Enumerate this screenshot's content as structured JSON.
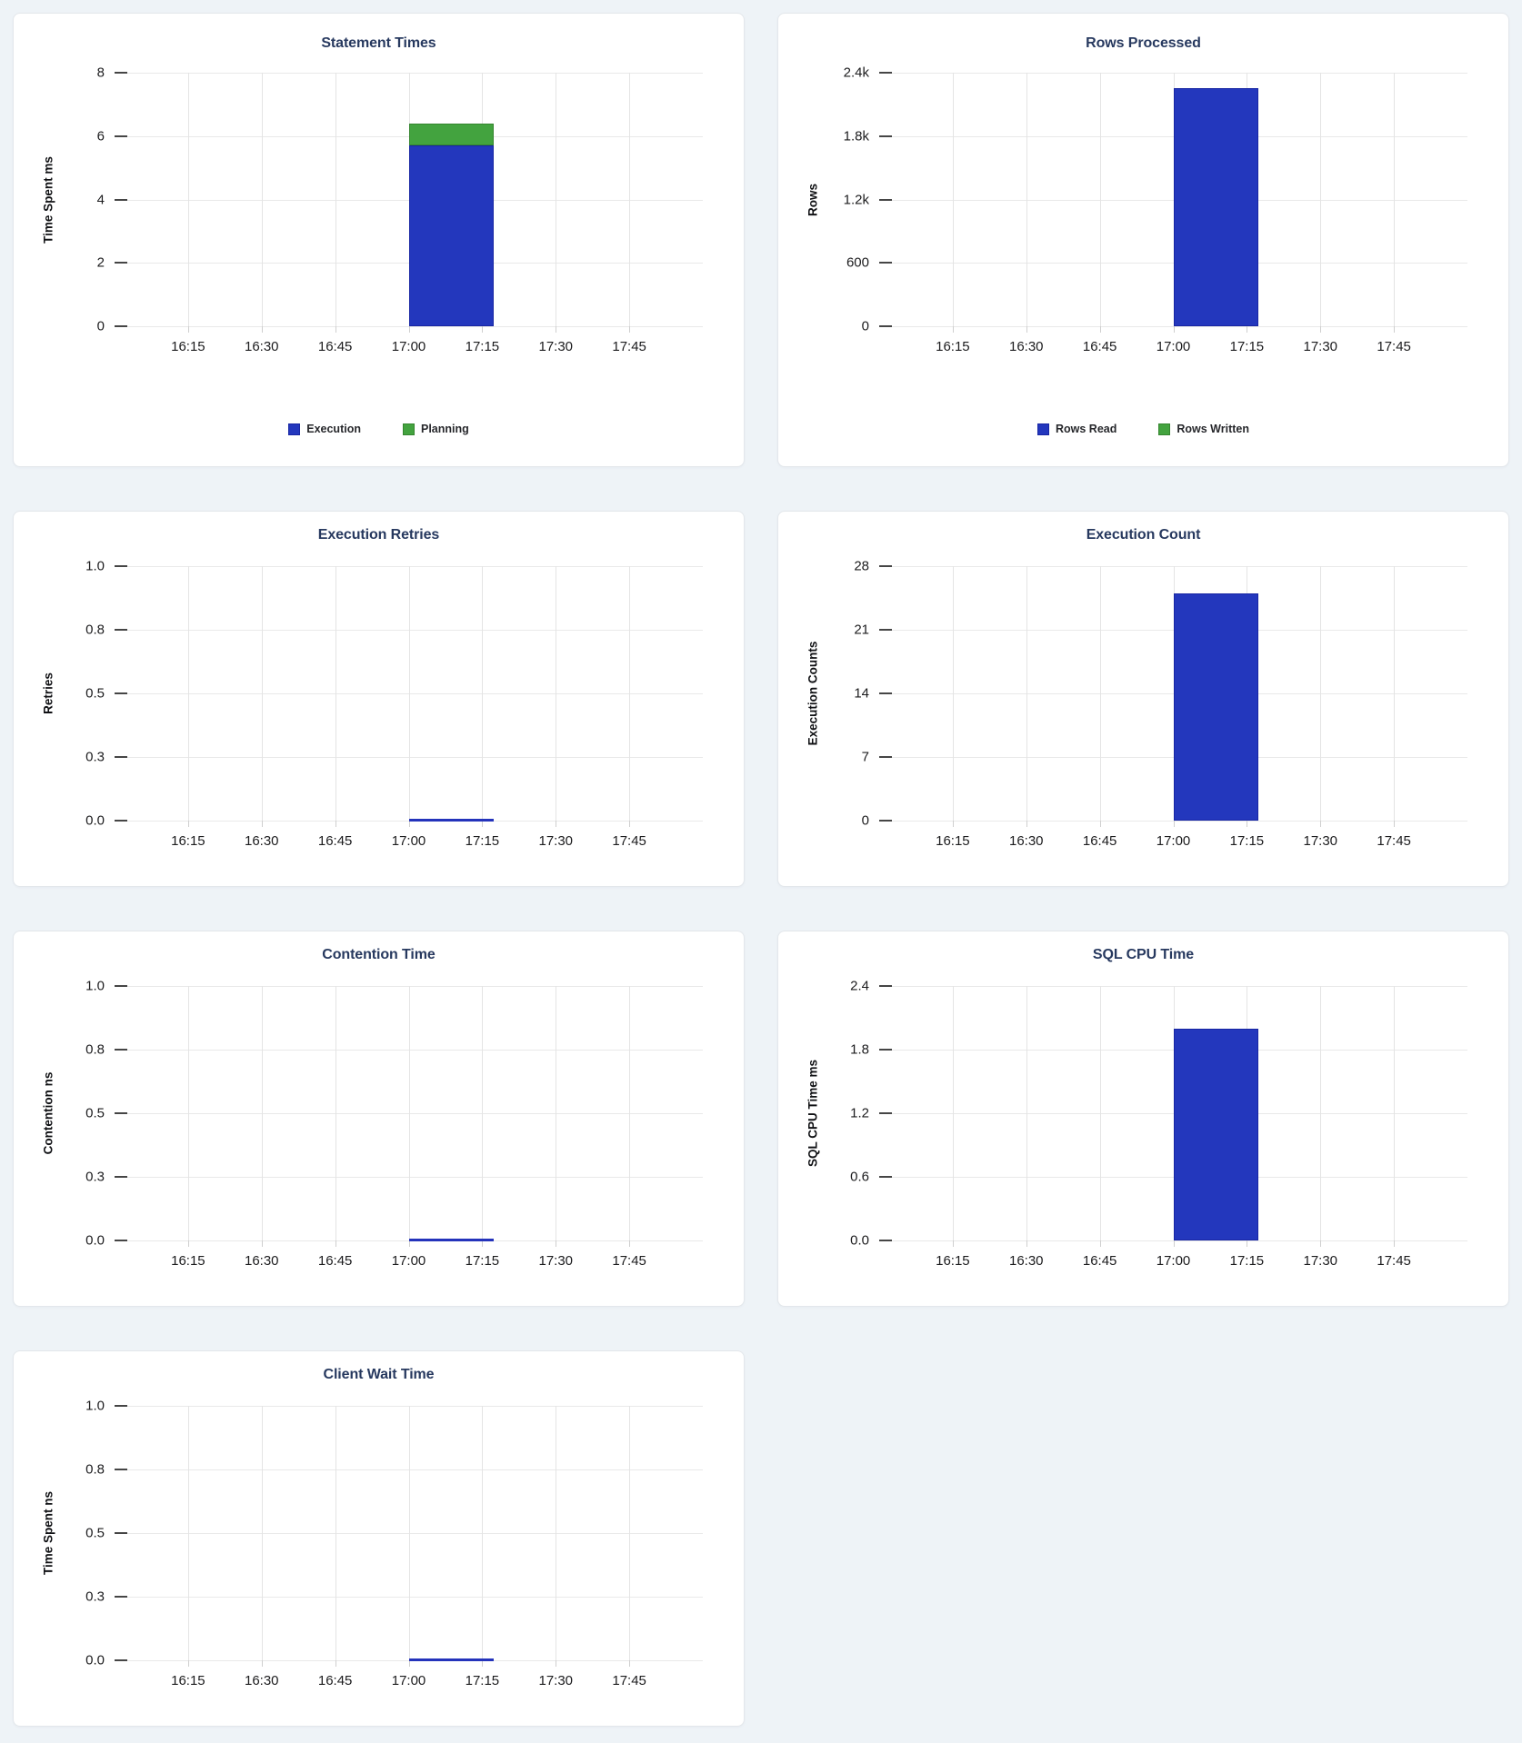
{
  "page": {
    "background_color": "#eef3f7",
    "card_background": "#ffffff"
  },
  "colors": {
    "bar_blue": "#2337bd",
    "bar_blue_border": "#1826a3",
    "bar_green": "#43a33f",
    "bar_green_border": "#35852f",
    "title_navy": "#27395f",
    "zero_line_blue": "#2433bb"
  },
  "time_ticks": [
    "16:15",
    "16:30",
    "16:45",
    "17:00",
    "17:15",
    "17:30",
    "17:45"
  ],
  "bar_window": {
    "from": "17:00",
    "to": "17:17"
  },
  "chart_data": [
    {
      "id": "statement-times",
      "type": "bar",
      "title": "Statement Times",
      "ylabel": "Time Spent ms",
      "ylim": [
        0,
        8
      ],
      "ytick_labels": [
        "8",
        "6",
        "4",
        "2",
        "0"
      ],
      "x_ticks": [
        "16:15",
        "16:30",
        "16:45",
        "17:00",
        "17:15",
        "17:30",
        "17:45"
      ],
      "series": [
        {
          "name": "Execution",
          "value": 5.7,
          "color": "#2337bd",
          "border": "#1826a3"
        },
        {
          "name": "Planning",
          "value": 0.7,
          "color": "#43a33f",
          "border": "#35852f"
        }
      ],
      "stacked": true,
      "show_legend": true,
      "legend": [
        "Execution",
        "Planning"
      ],
      "underlined_title": false,
      "zero_line": false
    },
    {
      "id": "rows-processed",
      "type": "bar",
      "title": "Rows Processed",
      "ylabel": "Rows",
      "ylim": [
        0,
        2400
      ],
      "ytick_labels": [
        "2.4k",
        "1.8k",
        "1.2k",
        "600",
        "0"
      ],
      "x_ticks": [
        "16:15",
        "16:30",
        "16:45",
        "17:00",
        "17:15",
        "17:30",
        "17:45"
      ],
      "series": [
        {
          "name": "Rows Read",
          "value": 2250,
          "color": "#2337bd",
          "border": "#1826a3"
        },
        {
          "name": "Rows Written",
          "value": 0,
          "color": "#43a33f",
          "border": "#35852f"
        }
      ],
      "stacked": true,
      "show_legend": true,
      "legend": [
        "Rows Read",
        "Rows Written"
      ],
      "underlined_title": false,
      "zero_line": false
    },
    {
      "id": "execution-retries",
      "type": "bar",
      "title": "Execution Retries",
      "ylabel": "Retries",
      "ylim": [
        0,
        1
      ],
      "ytick_labels": [
        "1.0",
        "0.8",
        "0.5",
        "0.3",
        "0.0"
      ],
      "x_ticks": [
        "16:15",
        "16:30",
        "16:45",
        "17:00",
        "17:15",
        "17:30",
        "17:45"
      ],
      "series": [
        {
          "name": "Retries",
          "value": 0,
          "color": "#2337bd",
          "border": "#1826a3"
        }
      ],
      "stacked": false,
      "show_legend": false,
      "legend": [],
      "underlined_title": false,
      "zero_line": true
    },
    {
      "id": "execution-count",
      "type": "bar",
      "title": "Execution Count",
      "ylabel": "Execution Counts",
      "ylim": [
        0,
        28
      ],
      "ytick_labels": [
        "28",
        "21",
        "14",
        "7",
        "0"
      ],
      "x_ticks": [
        "16:15",
        "16:30",
        "16:45",
        "17:00",
        "17:15",
        "17:30",
        "17:45"
      ],
      "series": [
        {
          "name": "Execution Count",
          "value": 25,
          "color": "#2337bd",
          "border": "#1826a3"
        }
      ],
      "stacked": false,
      "show_legend": false,
      "legend": [],
      "underlined_title": false,
      "zero_line": false
    },
    {
      "id": "contention-time",
      "type": "bar",
      "title": "Contention Time",
      "ylabel": "Contention ns",
      "ylim": [
        0,
        1
      ],
      "ytick_labels": [
        "1.0",
        "0.8",
        "0.5",
        "0.3",
        "0.0"
      ],
      "x_ticks": [
        "16:15",
        "16:30",
        "16:45",
        "17:00",
        "17:15",
        "17:30",
        "17:45"
      ],
      "series": [
        {
          "name": "Contention",
          "value": 0,
          "color": "#2337bd",
          "border": "#1826a3"
        }
      ],
      "stacked": false,
      "show_legend": false,
      "legend": [],
      "underlined_title": false,
      "zero_line": true
    },
    {
      "id": "sql-cpu-time",
      "type": "bar",
      "title": "SQL CPU Time",
      "ylabel": "SQL CPU Time ms",
      "ylim": [
        0,
        2.4
      ],
      "ytick_labels": [
        "2.4",
        "1.8",
        "1.2",
        "0.6",
        "0.0"
      ],
      "x_ticks": [
        "16:15",
        "16:30",
        "16:45",
        "17:00",
        "17:15",
        "17:30",
        "17:45"
      ],
      "series": [
        {
          "name": "SQL CPU Time",
          "value": 2.0,
          "color": "#2337bd",
          "border": "#1826a3"
        }
      ],
      "stacked": false,
      "show_legend": false,
      "legend": [],
      "underlined_title": false,
      "zero_line": false
    },
    {
      "id": "client-wait-time",
      "type": "bar",
      "title": "Client Wait Time",
      "ylabel": "Time Spent ns",
      "ylim": [
        0,
        1
      ],
      "ytick_labels": [
        "1.0",
        "0.8",
        "0.5",
        "0.3",
        "0.0"
      ],
      "x_ticks": [
        "16:15",
        "16:30",
        "16:45",
        "17:00",
        "17:15",
        "17:30",
        "17:45"
      ],
      "series": [
        {
          "name": "Client Wait",
          "value": 0,
          "color": "#2337bd",
          "border": "#1826a3"
        }
      ],
      "stacked": false,
      "show_legend": false,
      "legend": [],
      "underlined_title": false,
      "zero_line": true
    }
  ]
}
